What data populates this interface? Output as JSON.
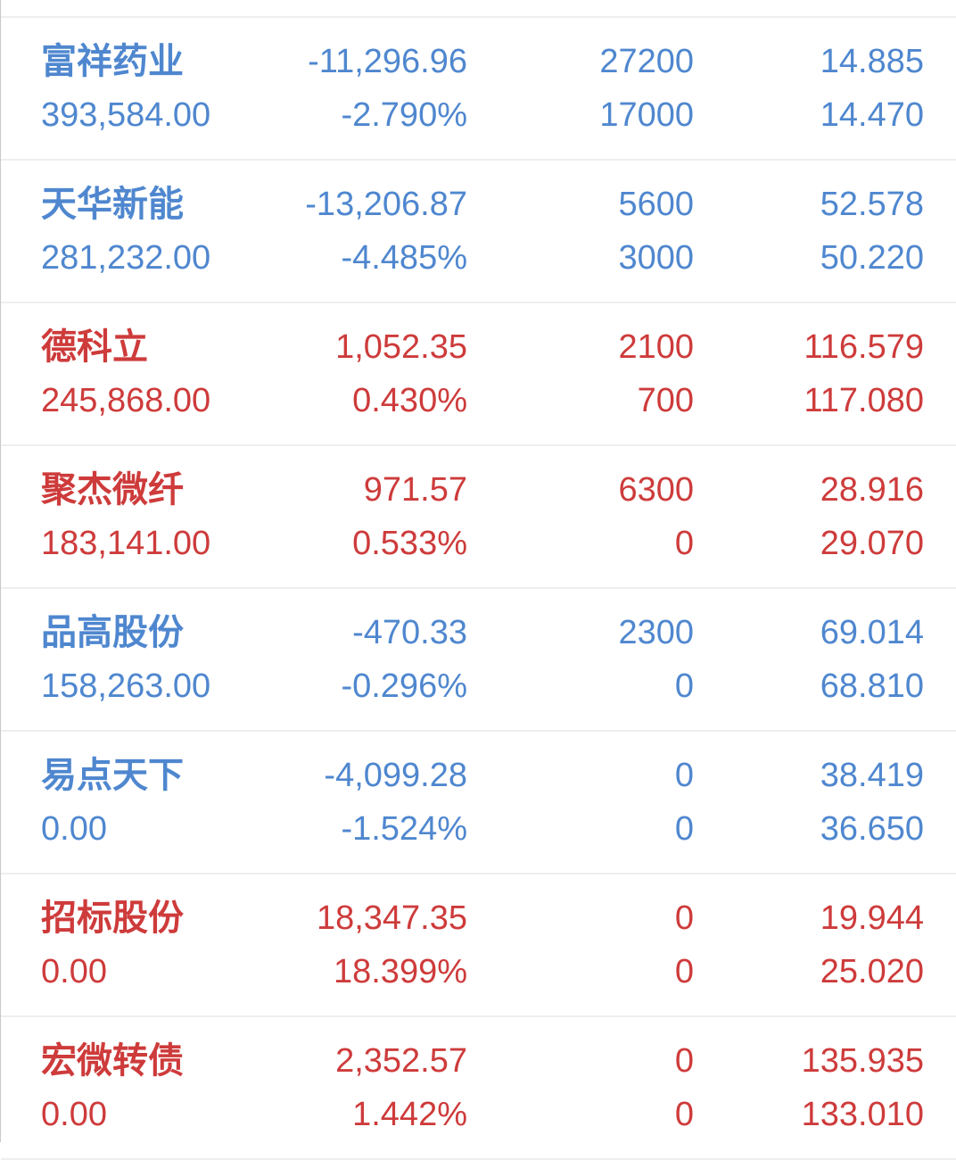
{
  "app": {
    "background": "#ffffff",
    "divider_color": "#eeeeee",
    "gain_color": "#ce3b3b",
    "loss_color": "#4f87cf"
  },
  "holdings": {
    "rows": [
      {
        "name": "富祥药业",
        "market_value": "393,584.00",
        "profit": "-11,296.96",
        "profit_pct": "-2.790%",
        "position": "27200",
        "available": "17000",
        "cost": "14.885",
        "price": "14.470",
        "trend": "down"
      },
      {
        "name": "天华新能",
        "market_value": "281,232.00",
        "profit": "-13,206.87",
        "profit_pct": "-4.485%",
        "position": "5600",
        "available": "3000",
        "cost": "52.578",
        "price": "50.220",
        "trend": "down"
      },
      {
        "name": "德科立",
        "market_value": "245,868.00",
        "profit": "1,052.35",
        "profit_pct": "0.430%",
        "position": "2100",
        "available": "700",
        "cost": "116.579",
        "price": "117.080",
        "trend": "up"
      },
      {
        "name": "聚杰微纤",
        "market_value": "183,141.00",
        "profit": "971.57",
        "profit_pct": "0.533%",
        "position": "6300",
        "available": "0",
        "cost": "28.916",
        "price": "29.070",
        "trend": "up"
      },
      {
        "name": "品高股份",
        "market_value": "158,263.00",
        "profit": "-470.33",
        "profit_pct": "-0.296%",
        "position": "2300",
        "available": "0",
        "cost": "69.014",
        "price": "68.810",
        "trend": "down"
      },
      {
        "name": "易点天下",
        "market_value": "0.00",
        "profit": "-4,099.28",
        "profit_pct": "-1.524%",
        "position": "0",
        "available": "0",
        "cost": "38.419",
        "price": "36.650",
        "trend": "down"
      },
      {
        "name": "招标股份",
        "market_value": "0.00",
        "profit": "18,347.35",
        "profit_pct": "18.399%",
        "position": "0",
        "available": "0",
        "cost": "19.944",
        "price": "25.020",
        "trend": "up"
      },
      {
        "name": "宏微转债",
        "market_value": "0.00",
        "profit": "2,352.57",
        "profit_pct": "1.442%",
        "position": "0",
        "available": "0",
        "cost": "135.935",
        "price": "133.010",
        "trend": "up"
      }
    ]
  }
}
